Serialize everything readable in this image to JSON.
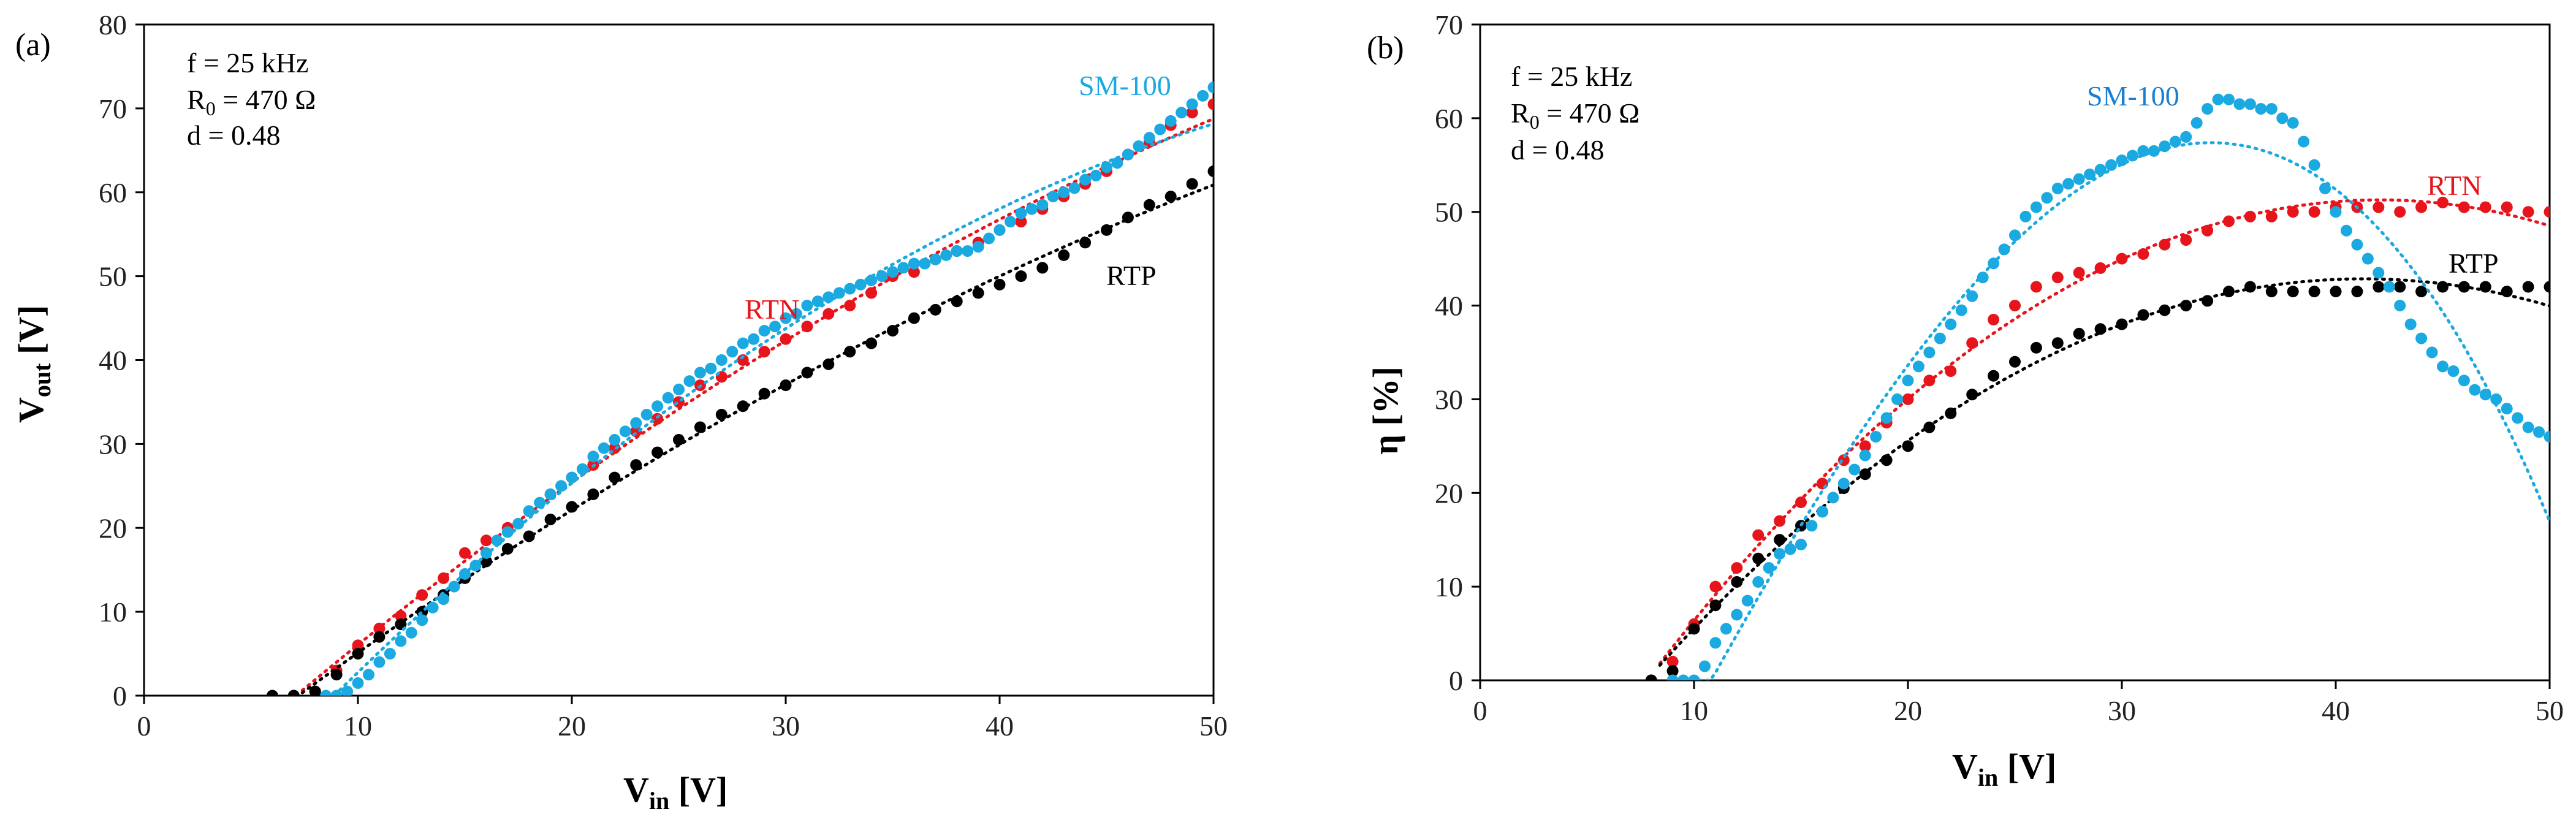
{
  "colors": {
    "RTN": "#e8141c",
    "RTP": "#000000",
    "SM-100": "#1aa9e0"
  },
  "chart_data": [
    {
      "panel": "(a)",
      "type": "scatter",
      "annotations": [
        "f = 25 kHz",
        "R0 = 470 Ω",
        "d = 0.48"
      ],
      "annotation_parts": {
        "line1": "f = 25 kHz",
        "r0_base": "R",
        "r0_sub": "0",
        "r0_value": " = 470 Ω",
        "line3": "d = 0.48"
      },
      "xlabel": "Vin [V]",
      "xlabel_parts": {
        "base": "V",
        "sub": "in",
        "unit": " [V]"
      },
      "ylabel": "Vout [V]",
      "ylabel_parts": {
        "base": "V",
        "sub": "out",
        "unit": " [V]"
      },
      "xlim": [
        0,
        50
      ],
      "ylim": [
        0,
        80
      ],
      "xticks": [
        0,
        10,
        20,
        30,
        40,
        50
      ],
      "yticks": [
        0,
        10,
        20,
        30,
        40,
        50,
        60,
        70,
        80
      ],
      "series": [
        {
          "name": "RTN",
          "label": "RTN",
          "trendline": "dotted",
          "x": [
            7,
            8,
            9,
            10,
            11,
            12,
            13,
            14,
            15,
            16,
            17,
            18,
            19,
            20,
            21,
            22,
            23,
            24,
            25,
            26,
            27,
            28,
            29,
            30,
            31,
            32,
            33,
            34,
            35,
            36,
            37,
            38,
            39,
            40,
            41,
            42,
            43,
            44,
            45,
            46,
            47,
            48,
            49,
            50
          ],
          "y": [
            0,
            0.5,
            3,
            6,
            8,
            9.5,
            12,
            14,
            17,
            18.5,
            20,
            22,
            24,
            26,
            27.5,
            29.5,
            31.5,
            33,
            35,
            37,
            38,
            40,
            41,
            42.5,
            44,
            45.5,
            46.5,
            48,
            50,
            50.5,
            52,
            53,
            54,
            55.5,
            56.5,
            58,
            59.5,
            61,
            62.5,
            64.5,
            66,
            68,
            69.5,
            70.5
          ]
        },
        {
          "name": "RTP",
          "label": "RTP",
          "trendline": "dotted",
          "x": [
            6,
            7,
            8,
            9,
            10,
            11,
            12,
            13,
            14,
            15,
            16,
            17,
            18,
            19,
            20,
            21,
            22,
            23,
            24,
            25,
            26,
            27,
            28,
            29,
            30,
            31,
            32,
            33,
            34,
            35,
            36,
            37,
            38,
            39,
            40,
            41,
            42,
            43,
            44,
            45,
            46,
            47,
            48,
            49,
            50
          ],
          "y": [
            0,
            0,
            0.5,
            2.5,
            5,
            7,
            8.5,
            10,
            12,
            14,
            16,
            17.5,
            19,
            21,
            22.5,
            24,
            26,
            27.5,
            29,
            30.5,
            32,
            33.5,
            34.5,
            36,
            37,
            38.5,
            39.5,
            41,
            42,
            43.5,
            45,
            46,
            47,
            48,
            49,
            50,
            51,
            52.5,
            54,
            55.5,
            57,
            58.5,
            59.5,
            61,
            62.5
          ]
        },
        {
          "name": "SM-100",
          "label": "SM-100",
          "trendline": "dotted",
          "x": [
            8.5,
            9,
            9.5,
            10,
            10.5,
            11,
            11.5,
            12,
            12.5,
            13,
            13.5,
            14,
            14.5,
            15,
            15.5,
            16,
            16.5,
            17,
            17.5,
            18,
            18.5,
            19,
            19.5,
            20,
            20.5,
            21,
            21.5,
            22,
            22.5,
            23,
            23.5,
            24,
            24.5,
            25,
            25.5,
            26,
            26.5,
            27,
            27.5,
            28,
            28.5,
            29,
            29.5,
            30,
            30.5,
            31,
            31.5,
            32,
            32.5,
            33,
            33.5,
            34,
            34.5,
            35,
            35.5,
            36,
            36.5,
            37,
            37.5,
            38,
            38.5,
            39,
            39.5,
            40,
            40.5,
            41,
            41.5,
            42,
            42.5,
            43,
            43.5,
            44,
            44.5,
            45,
            45.5,
            46,
            46.5,
            47,
            47.5,
            48,
            48.5,
            49,
            49.5,
            50
          ],
          "y": [
            0,
            0,
            0.5,
            1.5,
            2.5,
            4,
            5,
            6.5,
            7.5,
            9,
            10.5,
            11.5,
            13,
            14.5,
            15.5,
            17,
            18.5,
            19.5,
            20.5,
            22,
            23,
            24,
            25,
            26,
            27,
            28.5,
            29.5,
            30.5,
            31.5,
            32.5,
            33.5,
            34.5,
            35.5,
            36.5,
            37.5,
            38.5,
            39,
            40,
            41,
            42,
            42.5,
            43.5,
            44,
            45,
            45.5,
            46.5,
            47,
            47.5,
            48,
            48.5,
            49,
            49.5,
            50,
            50.5,
            51,
            51.5,
            51.5,
            52,
            52.5,
            53,
            53,
            53.5,
            54.5,
            55.5,
            56.5,
            57.5,
            58,
            58.5,
            59.5,
            60,
            60.5,
            61.5,
            62,
            63,
            63.5,
            64.5,
            65.5,
            66.5,
            67.5,
            68.5,
            69.5,
            70.5,
            71.5,
            72.5
          ]
        }
      ]
    },
    {
      "panel": "(b)",
      "type": "scatter",
      "annotations": [
        "f = 25 kHz",
        "R0 = 470 Ω",
        "d = 0.48"
      ],
      "annotation_parts": {
        "line1": "f = 25 kHz",
        "r0_base": "R",
        "r0_sub": "0",
        "r0_value": " = 470 Ω",
        "line3": "d = 0.48"
      },
      "xlabel": "Vin [V]",
      "xlabel_parts": {
        "base": "V",
        "sub": "in",
        "unit": " [V]"
      },
      "ylabel": "η [%]",
      "xlim": [
        0,
        50
      ],
      "ylim": [
        0,
        70
      ],
      "xticks": [
        0,
        10,
        20,
        30,
        40,
        50
      ],
      "yticks": [
        0,
        10,
        20,
        30,
        40,
        50,
        60,
        70
      ],
      "series": [
        {
          "name": "RTN",
          "label": "RTN",
          "trendline": "dotted",
          "x": [
            8,
            9,
            10,
            11,
            12,
            13,
            14,
            15,
            16,
            17,
            18,
            19,
            20,
            21,
            22,
            23,
            24,
            25,
            26,
            27,
            28,
            29,
            30,
            31,
            32,
            33,
            34,
            35,
            36,
            37,
            38,
            39,
            40,
            41,
            42,
            43,
            44,
            45,
            46,
            47,
            48,
            49,
            50
          ],
          "y": [
            0,
            2,
            6,
            10,
            12,
            15.5,
            17,
            19,
            21,
            23.5,
            25,
            27.5,
            30,
            32,
            33,
            36,
            38.5,
            40,
            42,
            43,
            43.5,
            44,
            45,
            45.5,
            46.5,
            47,
            48,
            49,
            49.5,
            49.5,
            50,
            50,
            50.5,
            50.5,
            50.5,
            50,
            50.5,
            51,
            50.5,
            50.5,
            50.5,
            50,
            50
          ]
        },
        {
          "name": "RTP",
          "label": "RTP",
          "trendline": "dotted",
          "x": [
            8,
            9,
            10,
            11,
            12,
            13,
            14,
            15,
            16,
            17,
            18,
            19,
            20,
            21,
            22,
            23,
            24,
            25,
            26,
            27,
            28,
            29,
            30,
            31,
            32,
            33,
            34,
            35,
            36,
            37,
            38,
            39,
            40,
            41,
            42,
            43,
            44,
            45,
            46,
            47,
            48,
            49,
            50
          ],
          "y": [
            0,
            1,
            5.5,
            8,
            10.5,
            13,
            15,
            16.5,
            18,
            20.5,
            22,
            23.5,
            25,
            27,
            28.5,
            30.5,
            32.5,
            34,
            35.5,
            36,
            37,
            37.5,
            38,
            39,
            39.5,
            40,
            40.5,
            41.5,
            42,
            41.5,
            41.5,
            41.5,
            41.5,
            41.5,
            42,
            42,
            41.5,
            42,
            42,
            42,
            41.5,
            42,
            42
          ]
        },
        {
          "name": "SM-100",
          "label": "SM-100",
          "trendline": "dotted",
          "x": [
            9,
            9.5,
            10,
            10.5,
            11,
            11.5,
            12,
            12.5,
            13,
            13.5,
            14,
            14.5,
            15,
            15.5,
            16,
            16.5,
            17,
            17.5,
            18,
            18.5,
            19,
            19.5,
            20,
            20.5,
            21,
            21.5,
            22,
            22.5,
            23,
            23.5,
            24,
            24.5,
            25,
            25.5,
            26,
            26.5,
            27,
            27.5,
            28,
            28.5,
            29,
            29.5,
            30,
            30.5,
            31,
            31.5,
            32,
            32.5,
            33,
            33.5,
            34,
            34.5,
            35,
            35.5,
            36,
            36.5,
            37,
            37.5,
            38,
            38.5,
            39,
            39.5,
            40,
            40.5,
            41,
            41.5,
            42,
            42.5,
            43,
            43.5,
            44,
            44.5,
            45,
            45.5,
            46,
            46.5,
            47,
            47.5,
            48,
            48.5,
            49,
            49.5,
            50
          ],
          "y": [
            0,
            0,
            0,
            1.5,
            4,
            5.5,
            7,
            8.5,
            10.5,
            12,
            13.5,
            14,
            14.5,
            16.5,
            18,
            19.5,
            21,
            22.5,
            24,
            26,
            28,
            30,
            32,
            33.5,
            35,
            36.5,
            38,
            39.5,
            41,
            43,
            44.5,
            46,
            47.5,
            49.5,
            50.5,
            51.5,
            52.5,
            53,
            53.5,
            54,
            54.5,
            55,
            55.5,
            56,
            56.5,
            56.5,
            57,
            57.5,
            58,
            59.5,
            61,
            62,
            62,
            61.5,
            61.5,
            61,
            61,
            60,
            59.5,
            57.5,
            55,
            52.5,
            50,
            48,
            46.5,
            45,
            43.5,
            42,
            40,
            38,
            36.5,
            35,
            33.5,
            33,
            32,
            31,
            30.5,
            30,
            29,
            28,
            27,
            26.5,
            26
          ]
        }
      ]
    }
  ]
}
